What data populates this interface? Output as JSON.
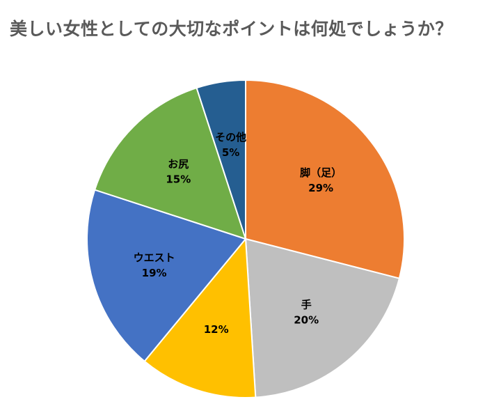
{
  "chart_data": {
    "type": "pie",
    "title": "美しい女性としての大切なポイントは何処でしょうか？",
    "slices": [
      {
        "label": "脚（足）",
        "value": 29,
        "value_label": "29%",
        "color": "#ED7D31"
      },
      {
        "label": "手",
        "value": 20,
        "value_label": "20%",
        "color": "#BFBFBF"
      },
      {
        "label": "",
        "value": 12,
        "value_label": "12%",
        "color": "#FFC000"
      },
      {
        "label": "ウエスト",
        "value": 19,
        "value_label": "19%",
        "color": "#4472C4"
      },
      {
        "label": "お尻",
        "value": 15,
        "value_label": "15%",
        "color": "#70AD47"
      },
      {
        "label": "その他",
        "value": 5,
        "value_label": "5%",
        "color": "#255E91"
      }
    ],
    "start_angle_deg": 0,
    "direction": "clockwise",
    "legend": "none",
    "slice_border_color": "#FFFFFF"
  }
}
